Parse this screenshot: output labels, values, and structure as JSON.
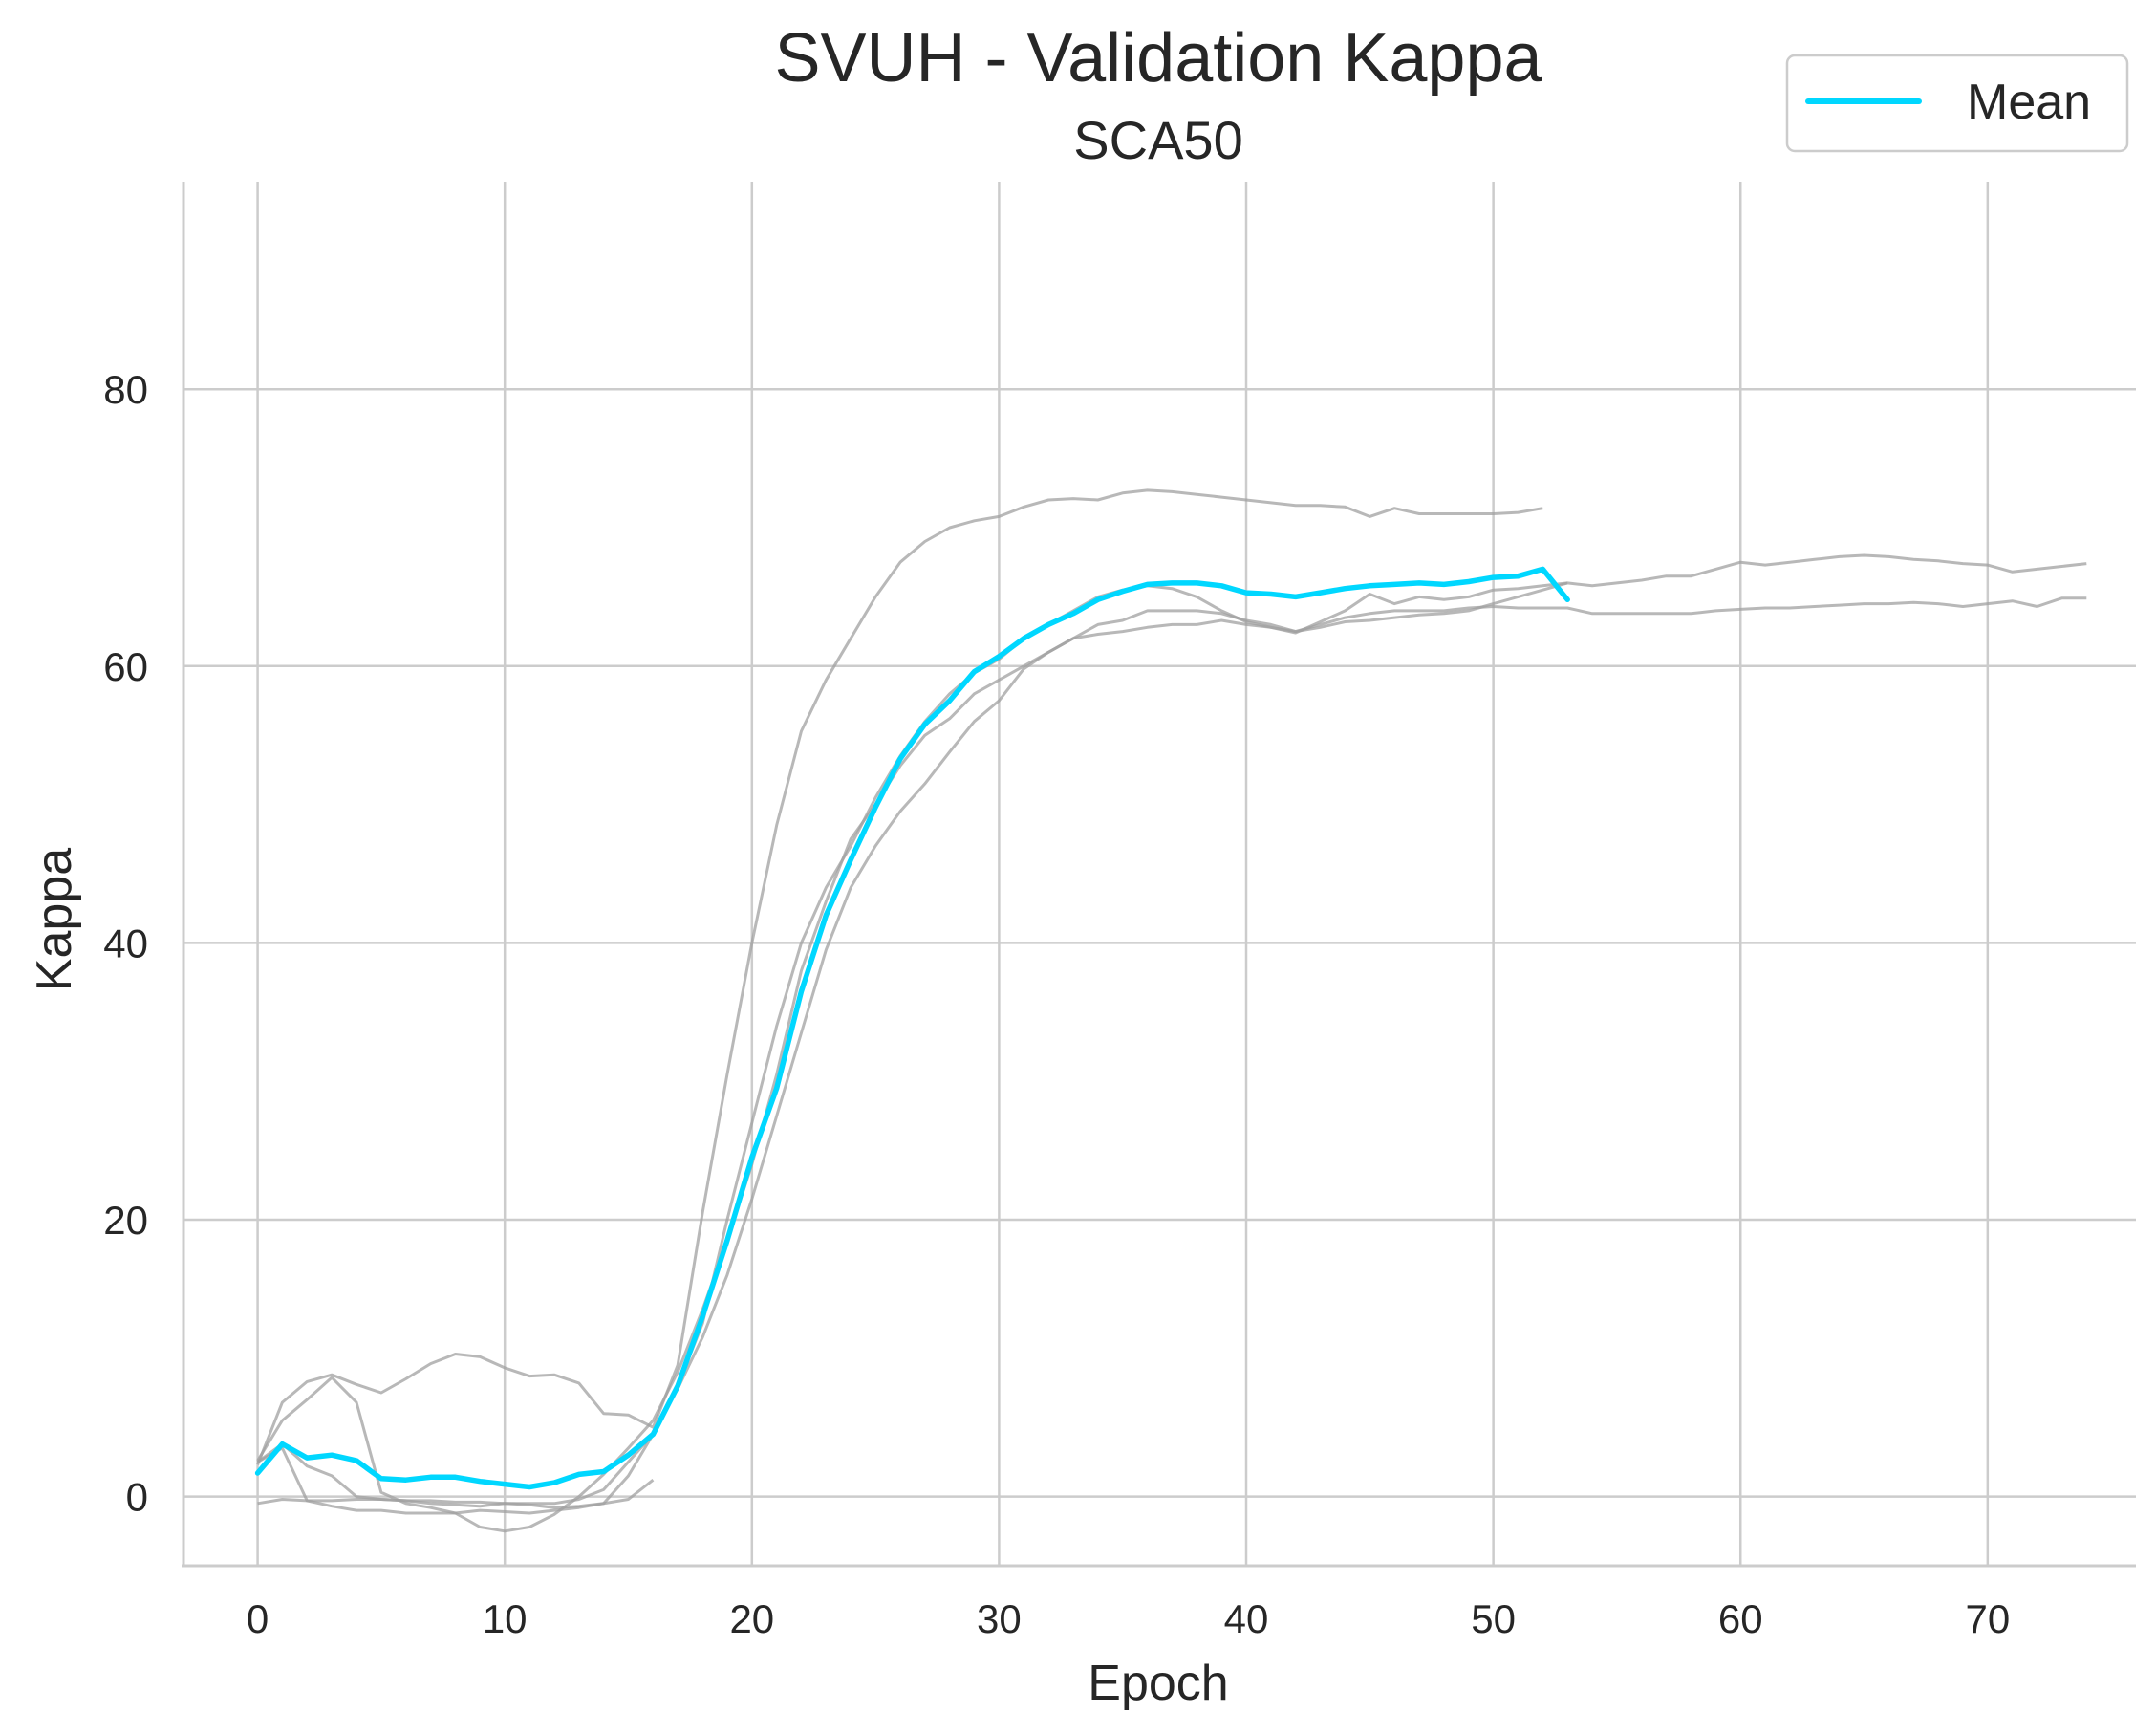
{
  "chart_data": {
    "type": "line",
    "title": "SVUH - Validation Kappa",
    "subtitle": "SCA50",
    "xlabel": "Epoch",
    "ylabel": "Kappa",
    "xlim": [
      -3,
      76
    ],
    "ylim": [
      -5,
      95
    ],
    "xticks": [
      0,
      10,
      20,
      30,
      40,
      50,
      60,
      70
    ],
    "yticks": [
      0,
      20,
      40,
      60,
      80
    ],
    "grid": true,
    "legend_position": "top-right",
    "colors": {
      "mean": "#00d7ff",
      "runs": "#a0a0a0"
    },
    "series": [
      {
        "name": "Mean",
        "x": [
          0,
          1,
          2,
          3,
          4,
          5,
          6,
          7,
          8,
          9,
          10,
          11,
          12,
          13,
          14,
          15,
          16,
          17,
          18,
          19,
          20,
          21,
          22,
          23,
          24,
          25,
          26,
          27,
          28,
          29,
          30,
          31,
          32,
          33,
          34,
          35,
          36,
          37,
          38,
          39,
          40,
          41,
          42,
          43,
          44,
          45,
          46,
          47,
          48,
          49,
          50,
          51,
          52,
          53
        ],
        "values": [
          1.7,
          3.8,
          2.8,
          3.0,
          2.6,
          1.3,
          1.2,
          1.4,
          1.4,
          1.1,
          0.9,
          0.7,
          1.0,
          1.6,
          1.8,
          3.0,
          4.5,
          8.0,
          13.0,
          18.5,
          24.5,
          29.5,
          36.5,
          42.0,
          46.0,
          49.8,
          53.3,
          55.8,
          57.5,
          59.6,
          60.7,
          62.0,
          63.0,
          63.8,
          64.8,
          65.4,
          65.9,
          66.0,
          66.0,
          65.8,
          65.3,
          65.2,
          65.0,
          65.3,
          65.6,
          65.8,
          65.9,
          66.0,
          65.9,
          66.1,
          66.4,
          66.5,
          67.0,
          64.8
        ]
      },
      {
        "x": [
          0,
          1,
          2,
          3,
          4,
          5,
          6,
          7,
          8,
          9,
          10,
          11,
          12,
          13,
          14,
          15,
          16,
          17,
          18,
          19,
          20,
          21,
          22,
          23,
          24,
          25,
          26,
          27,
          28,
          29,
          30,
          31,
          32,
          33,
          34,
          35,
          36,
          37,
          38,
          39,
          40,
          41,
          42,
          43,
          44,
          45,
          46,
          47,
          48,
          49,
          50,
          51,
          52
        ],
        "values": [
          2.3,
          6.8,
          8.3,
          8.8,
          8.1,
          7.5,
          8.5,
          9.6,
          10.3,
          10.1,
          9.3,
          8.7,
          8.8,
          8.2,
          6.0,
          5.9,
          5.0,
          9.5,
          20.5,
          30.5,
          40.0,
          48.5,
          55.3,
          59.0,
          62.0,
          65.0,
          67.5,
          69.0,
          70.0,
          70.5,
          70.8,
          71.5,
          72.0,
          72.1,
          72.0,
          72.5,
          72.7,
          72.6,
          72.4,
          72.2,
          72.0,
          71.8,
          71.6,
          71.6,
          71.5,
          70.8,
          71.4,
          71.0,
          71.0,
          71.0,
          71.0,
          71.1,
          71.4
        ]
      },
      {
        "x": [
          0,
          1,
          2,
          3,
          4,
          5,
          6,
          7,
          8,
          9,
          10,
          11,
          12,
          13,
          14,
          15,
          16,
          17,
          18,
          19,
          20,
          21,
          22,
          23,
          24,
          25,
          26,
          27,
          28,
          29,
          30,
          31,
          32,
          33,
          34,
          35,
          36,
          37,
          38,
          39,
          40,
          41,
          42,
          43,
          44,
          45,
          46,
          47,
          48,
          49,
          50,
          51,
          52,
          53,
          54,
          55,
          56,
          57,
          58,
          59,
          60,
          61,
          62,
          63,
          64,
          65,
          66,
          67,
          68,
          69,
          70,
          71,
          72,
          73,
          74
        ],
        "values": [
          2.6,
          5.5,
          7.0,
          8.6,
          6.8,
          0.3,
          -0.5,
          -0.8,
          -1.2,
          -2.2,
          -2.5,
          -2.2,
          -1.3,
          0.0,
          1.6,
          3.5,
          5.5,
          9.0,
          13.5,
          18.5,
          24.0,
          30.5,
          38.0,
          43.0,
          47.5,
          50.0,
          52.8,
          55.0,
          56.2,
          58.0,
          59.0,
          60.0,
          61.0,
          62.0,
          63.0,
          63.3,
          64.0,
          64.0,
          64.0,
          63.8,
          63.3,
          63.0,
          62.5,
          62.8,
          63.2,
          63.3,
          63.5,
          63.7,
          63.8,
          64.0,
          64.5,
          65.0,
          65.5,
          66.0,
          65.8,
          66.0,
          66.2,
          66.5,
          66.5,
          67.0,
          67.5,
          67.3,
          67.5,
          67.7,
          67.9,
          68.0,
          67.9,
          67.7,
          67.6,
          67.4,
          67.3,
          66.8,
          67.0,
          67.2,
          67.4
        ]
      },
      {
        "x": [
          0,
          1,
          2,
          3,
          4,
          5,
          6,
          7,
          8,
          9,
          10,
          11,
          12,
          13,
          14,
          15,
          16,
          17,
          18,
          19,
          20,
          21,
          22,
          23,
          24,
          25,
          26,
          27,
          28,
          29,
          30,
          31,
          32,
          33,
          34,
          35,
          36,
          37,
          38,
          39,
          40,
          41,
          42,
          43,
          44,
          45,
          46,
          47,
          48,
          49,
          50,
          51,
          52,
          53,
          54,
          55,
          56,
          57,
          58,
          59,
          60,
          61,
          62,
          63,
          64,
          65,
          66,
          67,
          68,
          69,
          70,
          71,
          72,
          73,
          74
        ],
        "values": [
          2.5,
          3.5,
          -0.3,
          -0.7,
          -1.0,
          -1.0,
          -1.2,
          -1.2,
          -1.2,
          -1.0,
          -1.1,
          -1.2,
          -1.0,
          -0.8,
          -0.5,
          1.5,
          4.5,
          7.8,
          11.5,
          16.0,
          21.5,
          27.5,
          33.5,
          39.5,
          44.0,
          47.0,
          49.5,
          51.5,
          53.8,
          56.0,
          57.5,
          59.8,
          61.0,
          62.0,
          62.3,
          62.5,
          62.8,
          63.0,
          63.0,
          63.3,
          63.0,
          62.8,
          62.5,
          63.0,
          63.5,
          63.8,
          64.0,
          64.0,
          64.0,
          64.2,
          64.3,
          64.2,
          64.2,
          64.2,
          63.8,
          63.8,
          63.8,
          63.8,
          63.8,
          64.0,
          64.1,
          64.2,
          64.2,
          64.3,
          64.4,
          64.5,
          64.5,
          64.6,
          64.5,
          64.3,
          64.5,
          64.7,
          64.3,
          64.9,
          64.9
        ]
      },
      {
        "x": [
          0,
          1,
          2,
          3,
          4,
          5,
          6,
          7,
          8,
          9,
          10,
          11,
          12,
          13,
          14,
          15,
          16,
          17,
          18,
          19,
          20,
          21,
          22,
          23,
          24,
          25,
          26,
          27,
          28,
          29,
          30,
          31,
          32,
          33,
          34,
          35,
          36,
          37,
          38,
          39,
          40,
          41,
          42,
          43,
          44,
          45,
          46,
          47,
          48,
          49,
          50,
          51,
          52,
          53
        ],
        "values": [
          -0.5,
          -0.2,
          -0.3,
          -0.3,
          -0.2,
          -0.2,
          -0.3,
          -0.3,
          -0.4,
          -0.4,
          -0.5,
          -0.5,
          -0.5,
          -0.2,
          0.5,
          2.5,
          4.5,
          8.0,
          12.5,
          20.0,
          27.0,
          34.0,
          40.0,
          44.0,
          47.0,
          50.5,
          53.5,
          56.0,
          58.0,
          59.5,
          60.5,
          62.0,
          63.0,
          64.0,
          65.0,
          65.5,
          65.8,
          65.6,
          65.0,
          64.0,
          63.2,
          62.8,
          62.4,
          63.2,
          64.0,
          65.2,
          64.5,
          65.0,
          64.8,
          65.0,
          65.5,
          65.6,
          65.8,
          66.0
        ]
      },
      {
        "x": [
          0,
          1,
          2,
          3,
          4,
          5,
          6,
          7,
          8,
          9,
          10,
          11,
          12,
          13,
          14,
          15,
          16
        ],
        "values": [
          2.5,
          3.8,
          2.2,
          1.5,
          0.0,
          -0.2,
          -0.3,
          -0.5,
          -0.6,
          -0.7,
          -0.5,
          -0.6,
          -0.8,
          -0.7,
          -0.5,
          -0.2,
          1.2
        ]
      }
    ]
  }
}
